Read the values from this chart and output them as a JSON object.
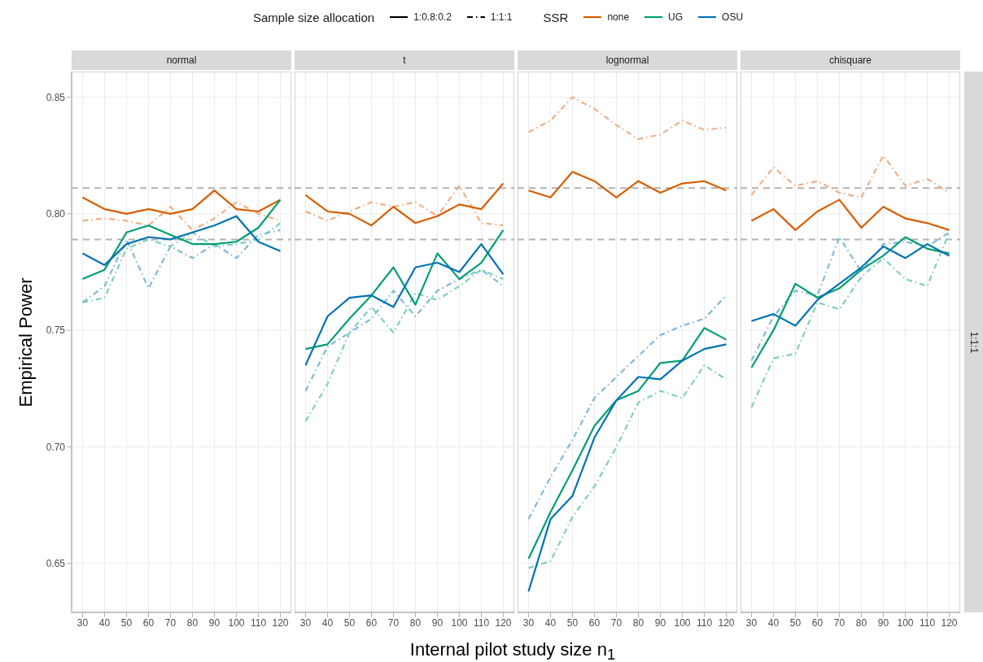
{
  "chart_data": [
    {
      "type": "line",
      "title": "normal",
      "ylabel": "Empirical Power",
      "legend": "top",
      "legend_title": "SSR",
      "annotations": [
        "Sample size allocation",
        "1:0.8:0.2",
        "1:1:1"
      ],
      "x": [
        30,
        40,
        50,
        60,
        70,
        80,
        90,
        100,
        110,
        120
      ],
      "xlim": [
        25,
        125
      ],
      "xticks": [
        30,
        40,
        50,
        60,
        70,
        80,
        90,
        100,
        110,
        120
      ],
      "ylim": [
        0.629,
        0.861
      ],
      "yticks": [
        0.65,
        {
          "value": 0.7,
          "label": "0.70"
        },
        0.75,
        {
          "value": 0.8,
          "label": "0.80"
        },
        0.85
      ],
      "grid": true,
      "ref_lines": [
        {
          "axis": "y",
          "value": 0.811,
          "color": "#b3b3b3",
          "line_style": "dashed"
        },
        {
          "axis": "y",
          "value": 0.789,
          "color": "#b3b3b3",
          "line_style": "dashed"
        }
      ],
      "series": [
        {
          "color": "#eeb088",
          "line_style": "dashed",
          "values": [
            0.797,
            0.798,
            0.797,
            0.795,
            0.803,
            0.793,
            0.798,
            0.805,
            0.8,
            0.797
          ]
        },
        {
          "color": "#80cfb9",
          "line_style": "dashed",
          "values": [
            0.762,
            0.764,
            0.785,
            0.789,
            0.786,
            0.792,
            0.786,
            0.787,
            0.789,
            0.796
          ]
        },
        {
          "color": "#80b9d9",
          "line_style": "dashed",
          "values": [
            0.762,
            0.769,
            0.789,
            0.768,
            0.786,
            0.781,
            0.787,
            0.781,
            0.791,
            0.793
          ]
        },
        {
          "name": "none",
          "color": "#d55e00",
          "line_style": "solid",
          "values": [
            0.807,
            0.802,
            0.8,
            0.802,
            0.8,
            0.802,
            0.81,
            0.802,
            0.801,
            0.806
          ]
        },
        {
          "name": "UG",
          "color": "#009e73",
          "line_style": "solid",
          "values": [
            0.772,
            0.776,
            0.792,
            0.795,
            0.791,
            0.787,
            0.787,
            0.788,
            0.794,
            0.806
          ]
        },
        {
          "name": "OSU",
          "color": "#0072b2",
          "line_style": "solid",
          "values": [
            0.783,
            0.778,
            0.787,
            0.79,
            0.789,
            0.792,
            0.795,
            0.799,
            0.788,
            0.784
          ]
        }
      ]
    },
    {
      "type": "line",
      "title": "t",
      "xlabel": "Internal pilot study size n$_{1}$",
      "tick_labels": "x",
      "x": [
        30,
        40,
        50,
        60,
        70,
        80,
        90,
        100,
        110,
        120
      ],
      "xlim": [
        25,
        125
      ],
      "xticks": [
        30,
        40,
        50,
        60,
        70,
        80,
        90,
        100,
        110,
        120
      ],
      "ylim": [
        0.629,
        0.861
      ],
      "yticks": [
        0.65,
        0.7,
        0.75,
        0.8,
        0.85
      ],
      "grid": true,
      "ref_lines": [
        {
          "axis": "y",
          "value": 0.811,
          "color": "#b3b3b3",
          "line_style": "dashed"
        },
        {
          "axis": "y",
          "value": 0.789,
          "color": "#b3b3b3",
          "line_style": "dashed"
        }
      ],
      "series": [
        {
          "color": "#eeb088",
          "line_style": "dashed",
          "values": [
            0.801,
            0.797,
            0.801,
            0.805,
            0.803,
            0.805,
            0.799,
            0.812,
            0.796,
            0.795
          ]
        },
        {
          "color": "#80cfb9",
          "line_style": "dashed",
          "values": [
            0.711,
            0.727,
            0.749,
            0.76,
            0.749,
            0.766,
            0.763,
            0.769,
            0.776,
            0.772
          ]
        },
        {
          "color": "#80b9d9",
          "line_style": "dashed",
          "values": [
            0.724,
            0.743,
            0.749,
            0.755,
            0.767,
            0.756,
            0.767,
            0.772,
            0.776,
            0.769
          ]
        },
        {
          "color": "#d55e00",
          "line_style": "solid",
          "values": [
            0.808,
            0.801,
            0.8,
            0.795,
            0.803,
            0.796,
            0.799,
            0.804,
            0.802,
            0.813
          ]
        },
        {
          "color": "#009e73",
          "line_style": "solid",
          "values": [
            0.742,
            0.744,
            0.755,
            0.765,
            0.777,
            0.761,
            0.783,
            0.772,
            0.779,
            0.793
          ]
        },
        {
          "color": "#0072b2",
          "line_style": "solid",
          "values": [
            0.735,
            0.756,
            0.764,
            0.765,
            0.76,
            0.777,
            0.779,
            0.775,
            0.787,
            0.774
          ]
        }
      ]
    },
    {
      "type": "line",
      "title": "lognormal",
      "tick_labels": "x",
      "x": [
        30,
        40,
        50,
        60,
        70,
        80,
        90,
        100,
        110,
        120
      ],
      "xlim": [
        25,
        125
      ],
      "xticks": [
        30,
        40,
        50,
        60,
        70,
        80,
        90,
        100,
        110,
        120
      ],
      "ylim": [
        0.629,
        0.861
      ],
      "yticks": [
        0.65,
        0.7,
        0.75,
        0.8,
        0.85
      ],
      "grid": true,
      "ref_lines": [
        {
          "axis": "y",
          "value": 0.811,
          "color": "#b3b3b3",
          "line_style": "dashed"
        },
        {
          "axis": "y",
          "value": 0.789,
          "color": "#b3b3b3",
          "line_style": "dashed"
        }
      ],
      "series": [
        {
          "color": "#eeb088",
          "line_style": "dashed",
          "values": [
            0.835,
            0.84,
            0.85,
            0.845,
            0.838,
            0.832,
            0.834,
            0.84,
            0.836,
            0.837
          ]
        },
        {
          "color": "#80cfb9",
          "line_style": "dashed",
          "values": [
            0.648,
            0.651,
            0.67,
            0.683,
            0.7,
            0.719,
            0.724,
            0.721,
            0.735,
            0.729
          ]
        },
        {
          "color": "#80b9d9",
          "line_style": "dashed",
          "values": [
            0.669,
            0.687,
            0.703,
            0.721,
            0.73,
            0.739,
            0.748,
            0.752,
            0.755,
            0.765
          ]
        },
        {
          "color": "#d55e00",
          "line_style": "solid",
          "values": [
            0.81,
            0.807,
            0.818,
            0.814,
            0.807,
            0.814,
            0.809,
            0.813,
            0.814,
            0.81
          ]
        },
        {
          "color": "#009e73",
          "line_style": "solid",
          "values": [
            0.652,
            0.672,
            0.69,
            0.709,
            0.72,
            0.724,
            0.736,
            0.737,
            0.751,
            0.746
          ]
        },
        {
          "color": "#0072b2",
          "line_style": "solid",
          "values": [
            0.638,
            0.669,
            0.679,
            0.704,
            0.72,
            0.73,
            0.729,
            0.737,
            0.742,
            0.744
          ]
        }
      ]
    },
    {
      "type": "line",
      "title": "chisquare",
      "tick_labels": "x",
      "annotations": [
        "1:1:1"
      ],
      "x": [
        30,
        40,
        50,
        60,
        70,
        80,
        90,
        100,
        110,
        120
      ],
      "xlim": [
        25,
        125
      ],
      "xticks": [
        30,
        40,
        50,
        60,
        70,
        80,
        90,
        100,
        110,
        120
      ],
      "ylim": [
        0.629,
        0.861
      ],
      "yticks": [
        0.65,
        0.7,
        0.75,
        0.8,
        0.85
      ],
      "grid": true,
      "ref_lines": [
        {
          "axis": "y",
          "value": 0.811,
          "color": "#b3b3b3",
          "line_style": "dashed"
        },
        {
          "axis": "y",
          "value": 0.789,
          "color": "#b3b3b3",
          "line_style": "dashed"
        }
      ],
      "series": [
        {
          "color": "#eeb088",
          "line_style": "dashed",
          "values": [
            0.808,
            0.82,
            0.812,
            0.814,
            0.809,
            0.807,
            0.825,
            0.812,
            0.815,
            0.809
          ]
        },
        {
          "color": "#80cfb9",
          "line_style": "dashed",
          "values": [
            0.717,
            0.738,
            0.74,
            0.762,
            0.759,
            0.773,
            0.781,
            0.772,
            0.769,
            0.792
          ]
        },
        {
          "color": "#80b9d9",
          "line_style": "dashed",
          "values": [
            0.737,
            0.756,
            0.767,
            0.765,
            0.79,
            0.775,
            0.787,
            0.788,
            0.786,
            0.792
          ]
        },
        {
          "color": "#d55e00",
          "line_style": "solid",
          "values": [
            0.797,
            0.802,
            0.793,
            0.801,
            0.806,
            0.794,
            0.803,
            0.798,
            0.796,
            0.793
          ]
        },
        {
          "color": "#009e73",
          "line_style": "solid",
          "values": [
            0.734,
            0.75,
            0.77,
            0.764,
            0.768,
            0.776,
            0.782,
            0.79,
            0.785,
            0.783
          ]
        },
        {
          "color": "#0072b2",
          "line_style": "solid",
          "values": [
            0.754,
            0.757,
            0.752,
            0.763,
            0.77,
            0.777,
            0.786,
            0.781,
            0.787,
            0.782
          ]
        }
      ]
    }
  ]
}
